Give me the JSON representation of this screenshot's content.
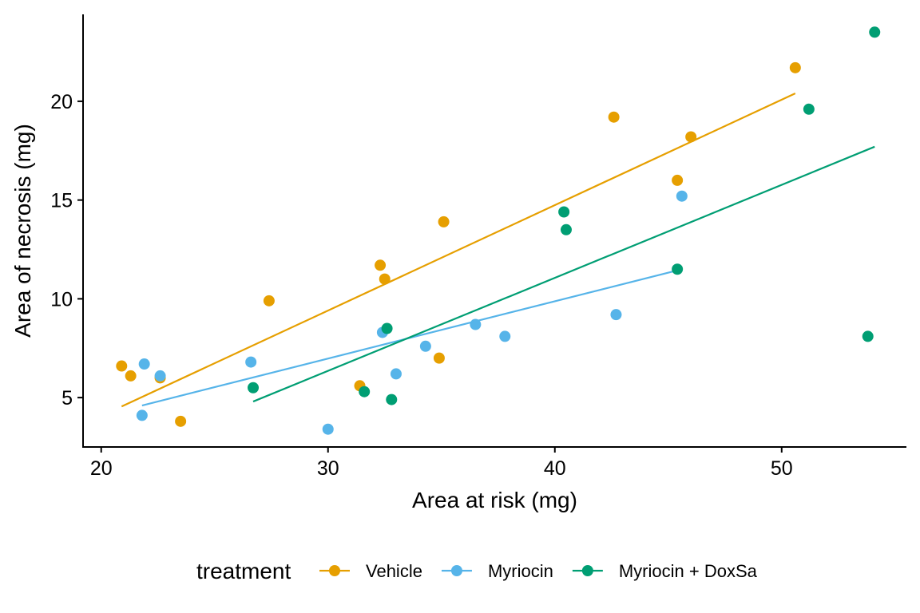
{
  "chart_data": {
    "type": "scatter",
    "xlabel": "Area at risk (mg)",
    "ylabel": "Area of necrosis (mg)",
    "xlim": [
      19.2,
      55.5
    ],
    "ylim": [
      2.5,
      24.4
    ],
    "x_ticks": [
      20,
      30,
      40,
      50
    ],
    "y_ticks": [
      5,
      10,
      15,
      20
    ],
    "grid": false,
    "legend_position": "bottom",
    "legend_title": "treatment",
    "series": [
      {
        "name": "Vehicle",
        "color": "#E69F00",
        "points": [
          [
            20.9,
            6.6
          ],
          [
            21.3,
            6.1
          ],
          [
            22.6,
            6.0
          ],
          [
            23.5,
            3.8
          ],
          [
            27.4,
            9.9
          ],
          [
            31.4,
            5.6
          ],
          [
            32.3,
            11.7
          ],
          [
            32.5,
            11.0
          ],
          [
            34.9,
            7.0
          ],
          [
            35.1,
            13.9
          ],
          [
            42.6,
            19.2
          ],
          [
            45.4,
            16.0
          ],
          [
            46.0,
            18.2
          ],
          [
            50.6,
            21.7
          ]
        ],
        "fit": [
          [
            20.9,
            4.55
          ],
          [
            50.6,
            20.4
          ]
        ]
      },
      {
        "name": "Myriocin",
        "color": "#56B4E9",
        "points": [
          [
            21.8,
            4.1
          ],
          [
            21.9,
            6.7
          ],
          [
            22.6,
            6.1
          ],
          [
            26.6,
            6.8
          ],
          [
            30.0,
            3.4
          ],
          [
            32.4,
            8.3
          ],
          [
            33.0,
            6.2
          ],
          [
            34.3,
            7.6
          ],
          [
            36.5,
            8.7
          ],
          [
            37.8,
            8.1
          ],
          [
            42.7,
            9.2
          ],
          [
            45.6,
            15.2
          ]
        ],
        "fit": [
          [
            21.8,
            4.6
          ],
          [
            45.6,
            11.5
          ]
        ]
      },
      {
        "name": "Myriocin + DoxSa",
        "color": "#009E73",
        "points": [
          [
            26.7,
            5.5
          ],
          [
            31.6,
            5.3
          ],
          [
            32.6,
            8.5
          ],
          [
            32.8,
            4.9
          ],
          [
            40.4,
            14.4
          ],
          [
            40.5,
            13.5
          ],
          [
            45.4,
            11.5
          ],
          [
            51.2,
            19.6
          ],
          [
            53.8,
            8.1
          ],
          [
            54.1,
            23.5
          ]
        ],
        "fit": [
          [
            26.7,
            4.8
          ],
          [
            54.1,
            17.7
          ]
        ]
      }
    ]
  }
}
